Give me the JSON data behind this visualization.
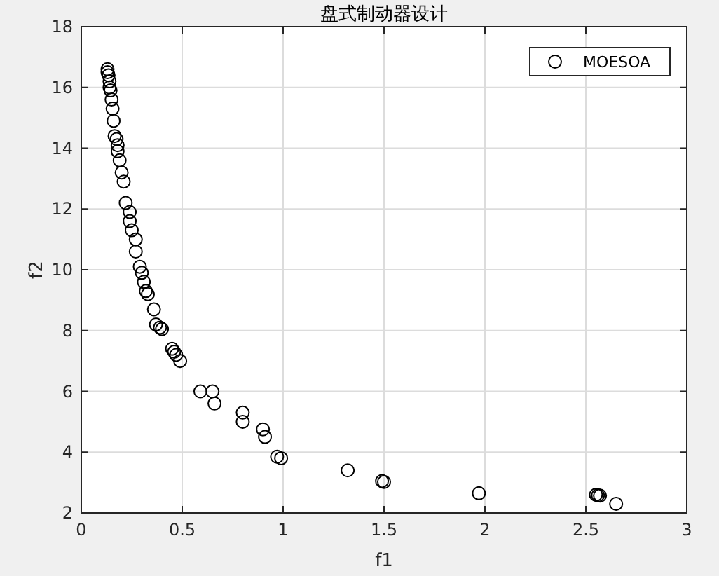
{
  "chart_data": {
    "type": "scatter",
    "title": "盘式制动器设计",
    "xlabel": "f1",
    "ylabel": "f2",
    "series": [
      {
        "name": "MOESOA",
        "color": "#000000",
        "x": [
          0.13,
          0.13,
          0.135,
          0.14,
          0.14,
          0.145,
          0.15,
          0.155,
          0.16,
          0.165,
          0.175,
          0.18,
          0.18,
          0.19,
          0.2,
          0.21,
          0.22,
          0.24,
          0.24,
          0.25,
          0.27,
          0.27,
          0.29,
          0.3,
          0.31,
          0.32,
          0.33,
          0.36,
          0.37,
          0.39,
          0.4,
          0.45,
          0.46,
          0.47,
          0.49,
          0.59,
          0.65,
          0.66,
          0.8,
          0.8,
          0.9,
          0.91,
          0.97,
          0.99,
          1.32,
          1.49,
          1.5,
          1.97,
          2.55,
          2.56,
          2.57,
          2.65
        ],
        "values": [
          16.6,
          16.5,
          16.4,
          16.2,
          16.0,
          15.9,
          15.6,
          15.3,
          14.9,
          14.4,
          14.3,
          14.1,
          13.9,
          13.6,
          13.2,
          12.9,
          12.2,
          11.9,
          11.6,
          11.3,
          11.0,
          10.6,
          10.1,
          9.9,
          9.6,
          9.3,
          9.2,
          8.7,
          8.2,
          8.1,
          8.05,
          7.4,
          7.3,
          7.2,
          7.0,
          6.0,
          6.0,
          5.6,
          5.3,
          5.0,
          4.75,
          4.5,
          3.85,
          3.8,
          3.4,
          3.05,
          3.02,
          2.65,
          2.6,
          2.58,
          2.57,
          2.3
        ]
      }
    ],
    "xlim": [
      0,
      3
    ],
    "ylim": [
      2,
      18
    ],
    "xticks": [
      0,
      0.5,
      1,
      1.5,
      2,
      2.5,
      3
    ],
    "yticks": [
      2,
      4,
      6,
      8,
      10,
      12,
      14,
      16,
      18
    ],
    "grid": true,
    "legend": "top right",
    "marker": "circle"
  }
}
